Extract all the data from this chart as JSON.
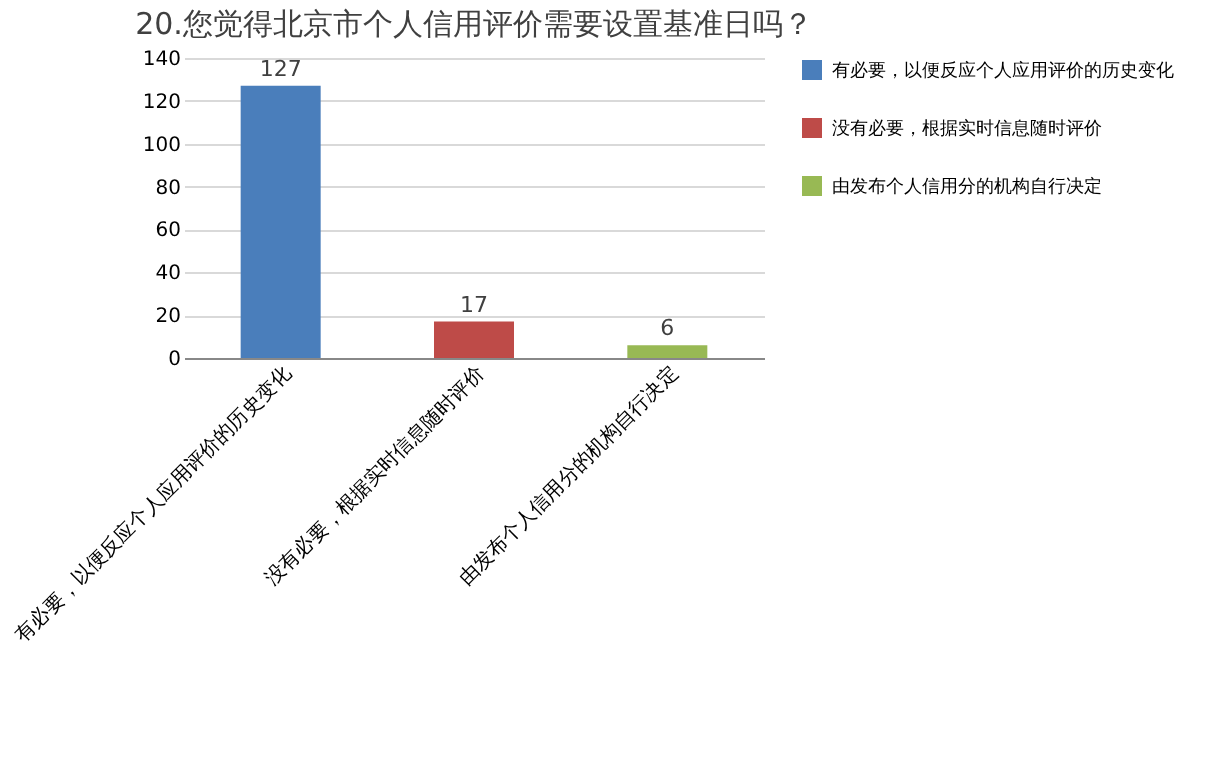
{
  "chart_data": {
    "type": "bar",
    "title": "20.您觉得北京市个人信用评价需要设置基准日吗？",
    "categories": [
      "有必要，以便反应个人应用评价的历史变化",
      "没有必要，根据实时信息随时评价",
      "由发布个人信用分的机构自行决定"
    ],
    "series": [
      {
        "name": "有必要，以便反应个人应用评价的历史变化",
        "color": "#4a7ebb",
        "values": [
          127,
          null,
          null
        ]
      },
      {
        "name": "没有必要，根据实时信息随时评价",
        "color": "#be4b48",
        "values": [
          null,
          17,
          null
        ]
      },
      {
        "name": "由发布个人信用分的机构自行决定",
        "color": "#98b954",
        "values": [
          null,
          null,
          6
        ]
      }
    ],
    "ylim": [
      0,
      140
    ],
    "yticks": [
      0,
      20,
      40,
      60,
      80,
      100,
      120,
      140
    ],
    "grid": "y",
    "data_labels": true,
    "legend": "right"
  }
}
